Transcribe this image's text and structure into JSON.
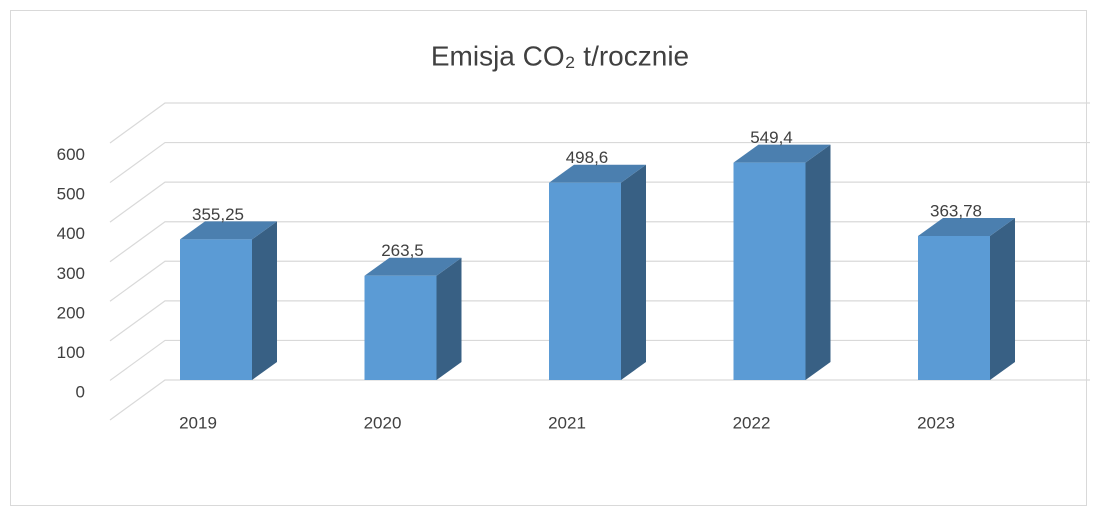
{
  "chart_data": {
    "type": "bar3d",
    "title": "Emisja CO₂ t/rocznie",
    "categories": [
      "2019",
      "2020",
      "2021",
      "2022",
      "2023"
    ],
    "values": [
      355.25,
      263.5,
      498.6,
      549.4,
      363.78
    ],
    "value_labels": [
      "355,25",
      "263,5",
      "498,6",
      "549,4",
      "363,78"
    ],
    "color": "#5b9bd5",
    "ylim": [
      0,
      700
    ],
    "yticks": [
      0,
      100,
      200,
      300,
      400,
      500,
      600
    ],
    "grid": true
  }
}
